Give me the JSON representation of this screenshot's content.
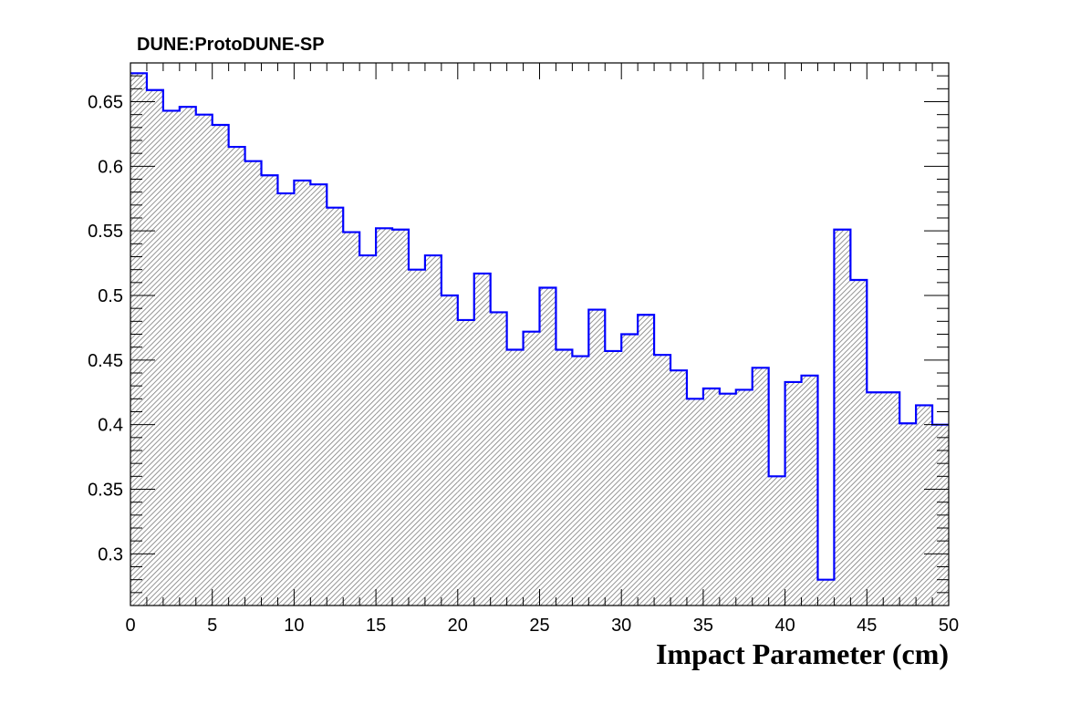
{
  "chart_data": {
    "type": "bar",
    "style": "step-histogram",
    "title": "DUNE:ProtoDUNE-SP",
    "xlabel": "Impact Parameter (cm)",
    "ylabel": "",
    "xlim": [
      0,
      50
    ],
    "ylim": [
      0.26,
      0.68
    ],
    "bin_width": 1,
    "x_ticks": [
      "0",
      "5",
      "10",
      "15",
      "20",
      "25",
      "30",
      "35",
      "40",
      "45",
      "50"
    ],
    "y_ticks": [
      "0.3",
      "0.35",
      "0.4",
      "0.45",
      "0.5",
      "0.55",
      "0.6",
      "0.65"
    ],
    "series": [
      {
        "name": "DUNE:ProtoDUNE-SP",
        "values": [
          0.672,
          0.659,
          0.643,
          0.646,
          0.64,
          0.632,
          0.615,
          0.604,
          0.593,
          0.579,
          0.589,
          0.586,
          0.568,
          0.549,
          0.531,
          0.552,
          0.551,
          0.52,
          0.531,
          0.5,
          0.481,
          0.517,
          0.487,
          0.458,
          0.472,
          0.506,
          0.458,
          0.453,
          0.489,
          0.457,
          0.47,
          0.485,
          0.454,
          0.442,
          0.42,
          0.428,
          0.424,
          0.427,
          0.444,
          0.36,
          0.433,
          0.438,
          0.28,
          0.551,
          0.512,
          0.425,
          0.425,
          0.401,
          0.415,
          0.4
        ]
      }
    ],
    "line_color": "#0000ff",
    "fill_color": "#888888",
    "fill_style": "hatched"
  }
}
